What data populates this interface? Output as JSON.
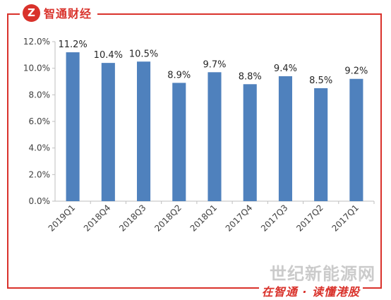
{
  "header": {
    "logo_mark": "Z",
    "logo_text": "智通财经"
  },
  "footer": {
    "slogan": "在智通 · 读懂港股"
  },
  "watermark": "世纪新能源网",
  "colors": {
    "bar": "#4f81bd",
    "accent": "#d9322b",
    "axis": "#bfbfbf"
  },
  "chart_data": {
    "type": "bar",
    "title": "",
    "xlabel": "",
    "ylabel": "",
    "categories": [
      "2019Q1",
      "2018Q4",
      "2018Q3",
      "2018Q2",
      "2018Q1",
      "2017Q4",
      "2017Q3",
      "2017Q2",
      "2017Q1"
    ],
    "values": [
      11.2,
      10.4,
      10.5,
      8.9,
      9.7,
      8.8,
      9.4,
      8.5,
      9.2
    ],
    "data_labels": [
      "11.2%",
      "10.4%",
      "10.5%",
      "8.9%",
      "9.7%",
      "8.8%",
      "9.4%",
      "8.5%",
      "9.2%"
    ],
    "ylim": [
      0,
      12
    ],
    "yticks": [
      0,
      2,
      4,
      6,
      8,
      10,
      12
    ],
    "ytick_labels": [
      "0.0%",
      "2.0%",
      "4.0%",
      "6.0%",
      "8.0%",
      "10.0%",
      "12.0%"
    ],
    "grid": false,
    "legend": "none"
  }
}
